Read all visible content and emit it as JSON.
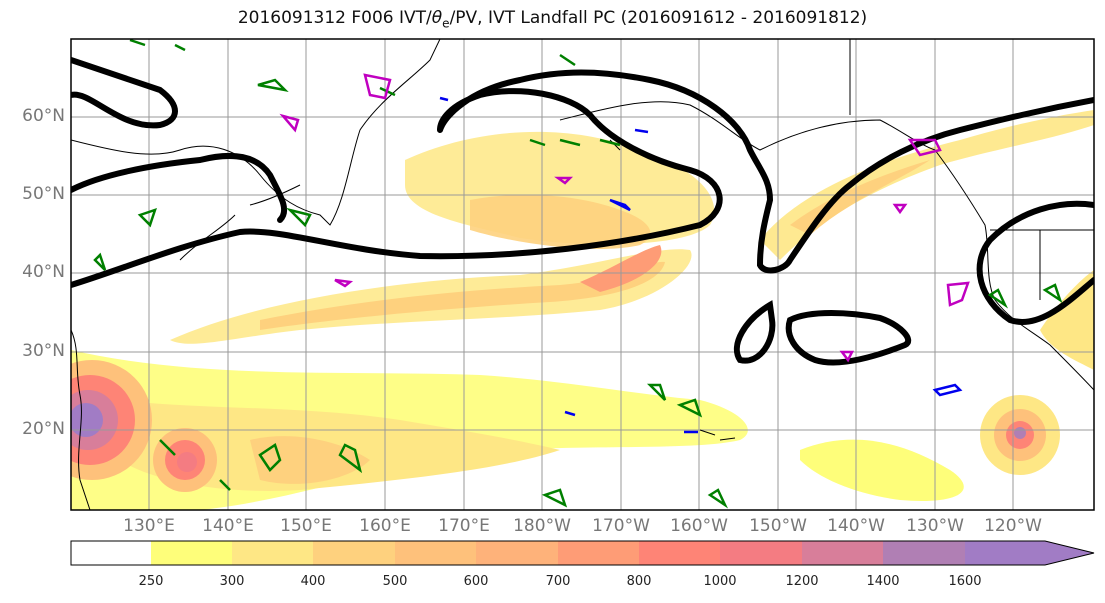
{
  "title": {
    "prefix": "2016091312 F006 IVT/",
    "symbol": "θ",
    "sub": "e",
    "suffix": "/PV, IVT Landfall PC (2016091612 - 2016091812)"
  },
  "lat_labels": [
    "60°N",
    "50°N",
    "40°N",
    "30°N",
    "20°N"
  ],
  "lon_labels": [
    "130°E",
    "140°E",
    "150°E",
    "160°E",
    "170°E",
    "180°W",
    "170°W",
    "160°W",
    "150°W",
    "140°W",
    "130°W",
    "120°W"
  ],
  "colorbar": {
    "levels": [
      "250",
      "300",
      "400",
      "500",
      "600",
      "700",
      "800",
      "1000",
      "1200",
      "1400",
      "1600"
    ],
    "colors": [
      "#ffffff",
      "#fefe7a",
      "#fee785",
      "#fed17e",
      "#fec17b",
      "#feb27a",
      "#fe9c76",
      "#fe8476",
      "#f47c82",
      "#d87e9a",
      "#b07fb4",
      "#a17cc5"
    ]
  },
  "legend_colors": {
    "contour": "#000000",
    "pv": "#008000",
    "theta_e_pos": "#c000c0",
    "theta_e_neg": "#0000ee"
  },
  "map": {
    "region": "North Pacific",
    "lon_range": [
      "120°E",
      "110°W"
    ],
    "lat_range": [
      "10°N",
      "70°N"
    ]
  }
}
